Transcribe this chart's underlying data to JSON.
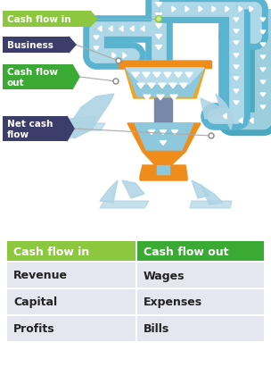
{
  "bg_color": "#ffffff",
  "table_col1_header": "Cash flow in",
  "table_col2_header": "Cash flow out",
  "col1_header_bg": "#8dc63f",
  "col2_header_bg": "#3aaa35",
  "header_text_color": "#ffffff",
  "row_text_color": "#222222",
  "col1_items": [
    "Revenue",
    "Capital",
    "Profits"
  ],
  "col2_items": [
    "Wages",
    "Expenses",
    "Bills"
  ],
  "label_cash_flow_in": "Cash flow in",
  "label_business": "Business",
  "label_cash_flow_out": "Cash flow\nout",
  "label_net_cash_flow": "Net cash\nflow",
  "label_cash_in_bg": "#8dc63f",
  "label_business_bg": "#3d3d6b",
  "label_cash_out_bg": "#3aaa35",
  "label_net_bg": "#3d3d6b",
  "label_text_color": "#ffffff",
  "pipe_outer": "#5ab4cf",
  "pipe_inner": "#aed8e8",
  "pipe_border": "#4a9ab8",
  "funnel_yellow": "#f5a31a",
  "funnel_orange": "#f08c1a",
  "funnel_liquid": "#8ec8dc",
  "funnel_liquid_light": "#b8dcea",
  "water_color": "#aed4e4",
  "stem_color": "#7888aa",
  "arrow_white": "#ffffff",
  "dpi": 100,
  "figw": 3.04,
  "figh": 4.31
}
